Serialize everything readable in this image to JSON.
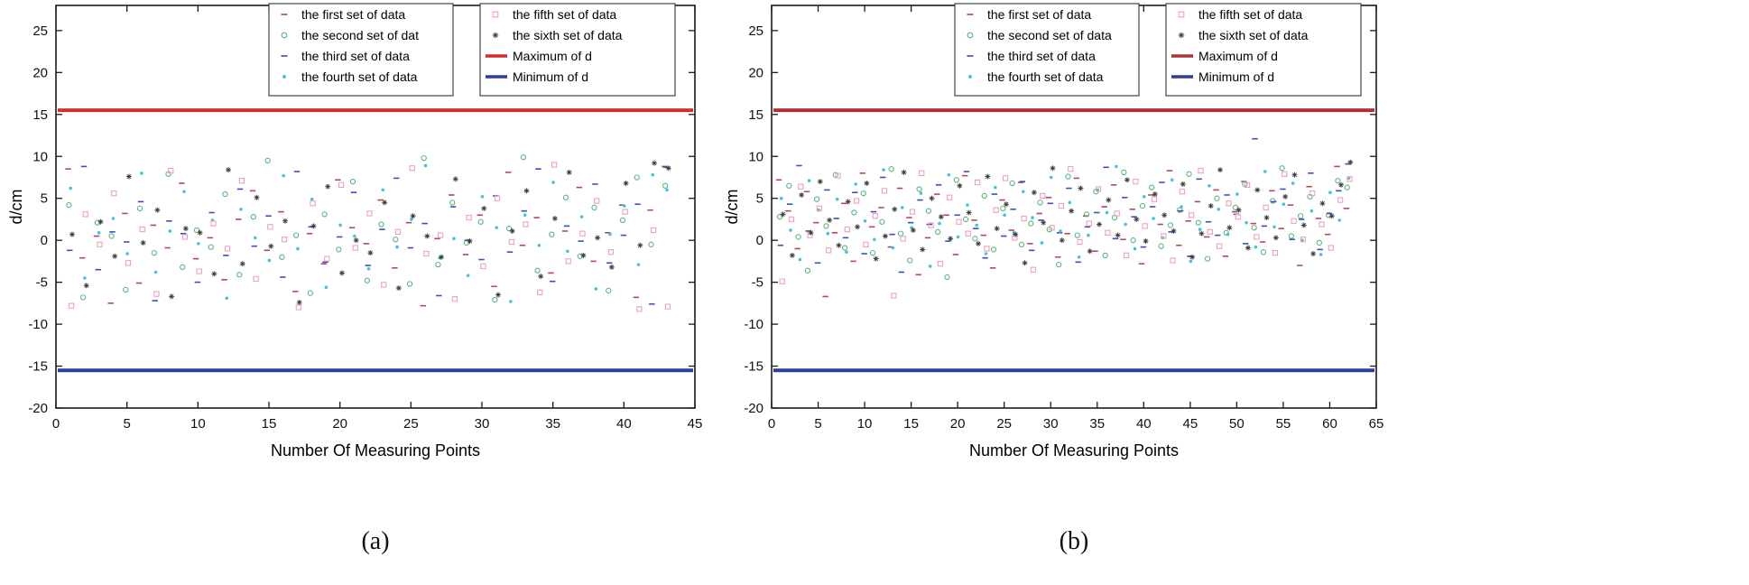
{
  "figure": {
    "captions": [
      "(a)",
      "(b)"
    ]
  },
  "chart_data": [
    {
      "type": "scatter",
      "panel": "a",
      "xlabel": "Number Of Measuring Points",
      "ylabel": "d/cm",
      "xlim": [
        0,
        45
      ],
      "ylim": [
        -20,
        28
      ],
      "xticks": [
        0,
        5,
        10,
        15,
        20,
        25,
        30,
        35,
        40,
        45
      ],
      "yticks": [
        -20,
        -15,
        -10,
        -5,
        0,
        5,
        10,
        15,
        20,
        25
      ],
      "n_points": 43,
      "grid": false,
      "legend_position": "top",
      "max_line": {
        "label": "Maximum of d",
        "value": 15.5,
        "color": "#d62c2c"
      },
      "min_line": {
        "label": "Minimum of d",
        "value": -15.5,
        "color": "#2e3d9b"
      },
      "series": [
        {
          "name": "the first set of data",
          "marker": "dash",
          "color": "#b2495e",
          "y": [
            8.5,
            -2.1,
            0.5,
            -7.5,
            3.2,
            -5.1,
            1.8,
            -0.9,
            6.8,
            -2.2,
            0.3,
            -4.7,
            2.5,
            5.9,
            -1.2,
            3.4,
            -6.1,
            0.8,
            -2.8,
            7.2,
            1.5,
            -0.4,
            4.8,
            -3.3,
            2.1,
            -7.8,
            0.2,
            5.4,
            -1.7,
            3.0,
            -5.5,
            8.1,
            -0.6,
            2.7,
            -3.9,
            1.1,
            6.3,
            -2.5,
            0.9,
            4.2,
            -6.8,
            3.6,
            8.8
          ]
        },
        {
          "name": "the second set of dat",
          "marker": "circle",
          "color": "#57b878",
          "y": [
            4.2,
            -6.8,
            2.1,
            0.5,
            -5.9,
            3.8,
            -1.5,
            7.9,
            -3.2,
            1.2,
            -0.8,
            5.5,
            -4.1,
            2.8,
            9.5,
            -2.0,
            0.6,
            -6.3,
            3.1,
            -1.1,
            7.0,
            -4.8,
            1.9,
            0.1,
            -5.2,
            9.8,
            -2.9,
            4.5,
            -0.3,
            2.2,
            -7.1,
            1.4,
            9.9,
            -3.6,
            0.7,
            5.1,
            -1.9,
            3.9,
            -6.0,
            2.4,
            7.5,
            -0.5,
            6.5
          ]
        },
        {
          "name": "the third set of data",
          "marker": "dash",
          "color": "#3b4fc0",
          "y": [
            -1.2,
            8.8,
            -3.5,
            1.0,
            -0.2,
            4.6,
            -7.2,
            2.3,
            0.8,
            -5.0,
            3.3,
            -1.8,
            6.1,
            -0.7,
            2.9,
            -4.4,
            8.2,
            1.6,
            -2.6,
            0.4,
            5.7,
            -3.0,
            1.3,
            7.4,
            -0.9,
            2.0,
            -6.6,
            4.0,
            0.0,
            -2.3,
            5.3,
            -1.4,
            3.5,
            8.5,
            -4.9,
            1.7,
            -0.1,
            6.7,
            -2.7,
            0.6,
            4.3,
            -7.6,
            8.7
          ]
        },
        {
          "name": "the fourth set of data",
          "marker": "dot",
          "color": "#3fc6da",
          "y": [
            6.2,
            -4.5,
            0.9,
            2.6,
            -1.6,
            8.0,
            -3.8,
            1.1,
            5.8,
            -0.4,
            2.4,
            -6.9,
            3.7,
            0.3,
            -2.4,
            7.7,
            -1.0,
            4.9,
            -5.6,
            1.8,
            0.5,
            -3.4,
            6.0,
            -0.8,
            2.5,
            8.9,
            -2.1,
            0.2,
            -4.2,
            5.2,
            1.5,
            -7.3,
            3.0,
            -0.6,
            6.9,
            -1.3,
            2.8,
            -5.8,
            0.7,
            4.1,
            -2.9,
            7.8,
            6.0
          ]
        },
        {
          "name": "the fifth set of data",
          "marker": "square",
          "color": "#f0a0bc",
          "y": [
            -7.8,
            3.1,
            -0.5,
            5.6,
            -2.7,
            1.3,
            -6.4,
            8.3,
            0.4,
            -3.7,
            2.0,
            -1.0,
            7.1,
            -4.6,
            1.6,
            0.1,
            -8.0,
            4.4,
            -2.2,
            6.6,
            -0.9,
            3.2,
            -5.3,
            1.0,
            8.6,
            -1.6,
            0.6,
            -7.0,
            2.7,
            -3.1,
            5.0,
            -0.2,
            1.9,
            -6.2,
            9.0,
            -2.5,
            0.8,
            4.7,
            -1.4,
            3.4,
            -8.2,
            1.2,
            -7.9
          ]
        },
        {
          "name": "the sixth set of data",
          "marker": "star",
          "color": "#3a3a3a",
          "y": [
            0.7,
            -5.4,
            2.2,
            -1.9,
            7.6,
            -0.3,
            3.6,
            -6.7,
            1.4,
            0.9,
            -4.0,
            8.4,
            -2.8,
            5.1,
            -0.7,
            2.3,
            -7.4,
            1.7,
            6.4,
            -3.9,
            0.0,
            -1.5,
            4.5,
            -5.7,
            2.9,
            0.5,
            -2.0,
            7.3,
            -0.1,
            3.8,
            -6.5,
            1.1,
            5.9,
            -4.3,
            2.6,
            8.1,
            -1.8,
            0.3,
            -3.2,
            6.8,
            -0.6,
            9.2,
            8.6
          ]
        }
      ]
    },
    {
      "type": "scatter",
      "panel": "b",
      "xlabel": "Number Of Measuring Points",
      "ylabel": "d/cm",
      "xlim": [
        0,
        65
      ],
      "ylim": [
        -20,
        28
      ],
      "xticks": [
        0,
        5,
        10,
        15,
        20,
        25,
        30,
        35,
        40,
        45,
        50,
        55,
        60,
        65
      ],
      "yticks": [
        -20,
        -15,
        -10,
        -5,
        0,
        5,
        10,
        15,
        20,
        25
      ],
      "n_points": 62,
      "grid": false,
      "legend_position": "top",
      "max_line": {
        "label": "Maximum of d",
        "value": 15.5,
        "color": "#b13232"
      },
      "min_line": {
        "label": "Minimum of d",
        "value": -15.5,
        "color": "#2e3d9b"
      },
      "series": [
        {
          "name": "the first set of data",
          "marker": "dash",
          "color": "#b2495e",
          "y": [
            7.2,
            3.5,
            -1.0,
            5.8,
            2.1,
            -6.7,
            0.9,
            4.4,
            -2.5,
            8.0,
            1.6,
            3.9,
            -0.8,
            6.2,
            2.7,
            -4.1,
            0.3,
            5.5,
            3.0,
            -1.7,
            7.7,
            2.4,
            0.6,
            -3.3,
            4.8,
            1.2,
            6.9,
            -0.4,
            3.2,
            5.1,
            -2.0,
            0.8,
            7.4,
            2.9,
            -1.3,
            4.0,
            6.6,
            0.1,
            3.7,
            -2.8,
            5.4,
            1.9,
            8.3,
            -0.6,
            2.3,
            4.6,
            0.4,
            6.0,
            -1.9,
            3.4,
            7.0,
            2.0,
            -0.2,
            5.9,
            1.4,
            4.2,
            -3.0,
            6.4,
            2.6,
            0.7,
            8.8,
            3.8
          ]
        },
        {
          "name": "the second set of data",
          "marker": "circle",
          "color": "#57b878",
          "y": [
            2.8,
            6.5,
            0.4,
            -3.6,
            4.9,
            1.7,
            7.8,
            -0.9,
            3.3,
            5.6,
            -1.5,
            2.2,
            8.5,
            0.8,
            -2.4,
            6.1,
            3.5,
            1.0,
            -4.4,
            7.2,
            2.5,
            0.2,
            5.3,
            -1.1,
            3.8,
            6.8,
            -0.5,
            2.0,
            4.5,
            1.3,
            -2.9,
            7.6,
            0.6,
            3.1,
            5.8,
            -1.8,
            2.7,
            8.1,
            0.0,
            4.1,
            6.3,
            -0.7,
            1.8,
            3.6,
            7.9,
            2.1,
            -2.2,
            5.0,
            0.9,
            3.9,
            6.7,
            1.5,
            -1.4,
            4.7,
            8.6,
            0.5,
            2.9,
            5.2,
            -0.3,
            3.0,
            7.1,
            6.3
          ]
        },
        {
          "name": "the third set of data",
          "marker": "dash",
          "color": "#3b4fc0",
          "y": [
            -0.6,
            4.3,
            8.9,
            1.1,
            -2.7,
            6.0,
            2.6,
            0.3,
            5.7,
            -1.6,
            3.4,
            7.5,
            0.7,
            -3.8,
            2.1,
            4.8,
            1.9,
            6.6,
            -0.1,
            3.0,
            8.2,
            1.4,
            -2.1,
            5.5,
            0.5,
            3.7,
            7.0,
            -1.2,
            2.4,
            4.4,
            0.9,
            6.2,
            -2.6,
            1.6,
            3.3,
            8.7,
            0.2,
            5.1,
            2.8,
            -0.8,
            4.0,
            6.9,
            1.0,
            3.5,
            -1.9,
            7.3,
            2.2,
            0.6,
            5.4,
            3.1,
            -0.4,
            12.1,
            1.7,
            4.6,
            6.1,
            0.1,
            2.5,
            8.0,
            -1.1,
            3.2,
            5.9,
            9.1
          ]
        },
        {
          "name": "the fourth set of data",
          "marker": "dot",
          "color": "#3fc6da",
          "y": [
            5.0,
            1.2,
            -2.3,
            7.1,
            3.6,
            0.8,
            4.9,
            -1.4,
            6.7,
            2.3,
            0.1,
            8.4,
            -0.9,
            3.9,
            1.5,
            5.6,
            -3.1,
            2.0,
            7.8,
            0.4,
            4.2,
            1.8,
            -1.6,
            6.3,
            3.0,
            0.9,
            5.8,
            2.7,
            -0.3,
            7.5,
            1.1,
            4.5,
            -2.0,
            0.6,
            6.0,
            3.3,
            8.8,
            1.9,
            -1.0,
            5.2,
            2.6,
            0.3,
            7.2,
            4.0,
            -2.5,
            1.3,
            6.5,
            3.7,
            0.7,
            5.5,
            2.1,
            -0.8,
            8.2,
            1.6,
            4.3,
            6.8,
            0.0,
            3.5,
            -1.7,
            5.7,
            2.4,
            7.4
          ]
        },
        {
          "name": "the fifth set of data",
          "marker": "square",
          "color": "#f0a0bc",
          "y": [
            -4.9,
            2.5,
            6.4,
            0.6,
            3.8,
            -1.2,
            7.7,
            1.3,
            4.7,
            -0.5,
            2.9,
            5.9,
            -6.6,
            0.2,
            3.4,
            8.0,
            1.8,
            -2.8,
            5.1,
            2.2,
            0.8,
            6.9,
            -1.0,
            3.6,
            7.4,
            0.3,
            2.6,
            -3.5,
            5.3,
            1.5,
            4.1,
            8.5,
            -0.2,
            2.0,
            6.1,
            0.9,
            3.2,
            -1.8,
            7.0,
            1.7,
            4.9,
            0.5,
            -2.4,
            5.8,
            3.0,
            8.3,
            1.0,
            -0.7,
            4.4,
            2.8,
            6.6,
            0.4,
            3.9,
            -1.5,
            7.9,
            2.3,
            0.1,
            5.6,
            1.9,
            -0.9,
            4.8,
            7.3
          ]
        },
        {
          "name": "the sixth set of data",
          "marker": "star",
          "color": "#3a3a3a",
          "y": [
            3.1,
            -1.8,
            5.4,
            0.9,
            7.0,
            2.4,
            -0.6,
            4.6,
            1.6,
            6.8,
            -2.2,
            0.5,
            3.7,
            8.1,
            1.2,
            -1.1,
            5.0,
            2.8,
            0.2,
            6.5,
            3.3,
            -0.4,
            7.6,
            1.4,
            4.3,
            0.7,
            -2.7,
            5.7,
            2.1,
            8.6,
            0.0,
            3.5,
            6.2,
            -1.3,
            1.9,
            4.8,
            0.6,
            7.2,
            2.5,
            -0.1,
            5.5,
            3.0,
            1.1,
            6.7,
            -2.0,
            0.8,
            4.1,
            8.4,
            1.5,
            3.6,
            -0.9,
            6.0,
            2.7,
            0.3,
            5.2,
            7.8,
            1.8,
            -1.6,
            4.4,
            2.9,
            6.6,
            9.3
          ]
        }
      ]
    }
  ]
}
